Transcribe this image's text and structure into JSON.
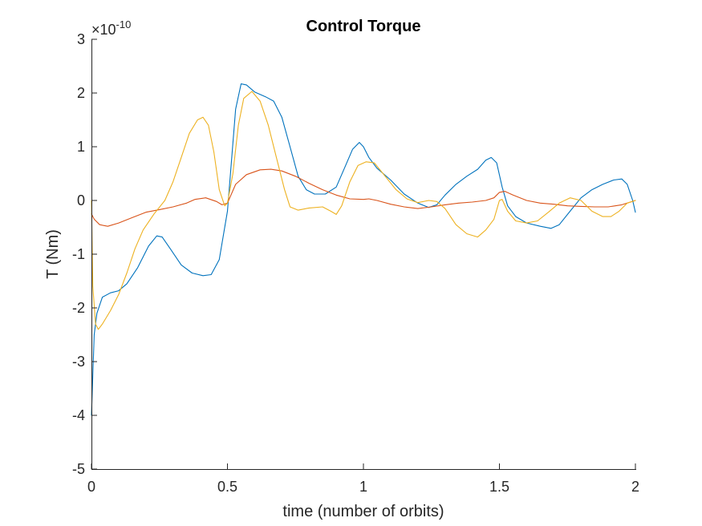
{
  "chart_data": {
    "type": "line",
    "title": "Control Torque",
    "xlabel": "time (number of orbits)",
    "ylabel": "T (Nm)",
    "y_exponent": {
      "base": "10",
      "power": "-10"
    },
    "xlim": [
      0,
      2
    ],
    "ylim": [
      -5,
      3
    ],
    "x_ticks": [
      0,
      0.5,
      1,
      1.5,
      2
    ],
    "x_tick_labels": [
      "0",
      "0.5",
      "1",
      "1.5",
      "2"
    ],
    "y_ticks": [
      -5,
      -4,
      -3,
      -2,
      -1,
      0,
      1,
      2,
      3
    ],
    "y_tick_labels": [
      "-5",
      "-4",
      "-3",
      "-2",
      "-1",
      "0",
      "1",
      "2",
      "3"
    ],
    "grid": false,
    "box": false,
    "series": [
      {
        "color": "#0072BD",
        "points": [
          [
            0,
            -4
          ],
          [
            0.01,
            -2.5
          ],
          [
            0.02,
            -2.1
          ],
          [
            0.04,
            -1.8
          ],
          [
            0.07,
            -1.72
          ],
          [
            0.1,
            -1.68
          ],
          [
            0.13,
            -1.55
          ],
          [
            0.17,
            -1.25
          ],
          [
            0.21,
            -0.85
          ],
          [
            0.24,
            -0.66
          ],
          [
            0.26,
            -0.68
          ],
          [
            0.29,
            -0.9
          ],
          [
            0.33,
            -1.2
          ],
          [
            0.37,
            -1.35
          ],
          [
            0.41,
            -1.4
          ],
          [
            0.44,
            -1.38
          ],
          [
            0.47,
            -1.1
          ],
          [
            0.5,
            -0.2
          ],
          [
            0.53,
            1.7
          ],
          [
            0.55,
            2.17
          ],
          [
            0.57,
            2.15
          ],
          [
            0.6,
            2.02
          ],
          [
            0.64,
            1.93
          ],
          [
            0.67,
            1.85
          ],
          [
            0.7,
            1.55
          ],
          [
            0.73,
            1.0
          ],
          [
            0.76,
            0.45
          ],
          [
            0.79,
            0.2
          ],
          [
            0.82,
            0.12
          ],
          [
            0.86,
            0.12
          ],
          [
            0.9,
            0.25
          ],
          [
            0.93,
            0.6
          ],
          [
            0.96,
            0.95
          ],
          [
            0.985,
            1.08
          ],
          [
            1.0,
            1.0
          ],
          [
            1.02,
            0.8
          ],
          [
            1.05,
            0.6
          ],
          [
            1.1,
            0.38
          ],
          [
            1.15,
            0.12
          ],
          [
            1.2,
            -0.05
          ],
          [
            1.24,
            -0.13
          ],
          [
            1.27,
            -0.08
          ],
          [
            1.3,
            0.1
          ],
          [
            1.34,
            0.3
          ],
          [
            1.38,
            0.45
          ],
          [
            1.42,
            0.58
          ],
          [
            1.45,
            0.75
          ],
          [
            1.47,
            0.8
          ],
          [
            1.49,
            0.7
          ],
          [
            1.51,
            0.25
          ],
          [
            1.53,
            -0.1
          ],
          [
            1.56,
            -0.3
          ],
          [
            1.6,
            -0.42
          ],
          [
            1.65,
            -0.48
          ],
          [
            1.69,
            -0.52
          ],
          [
            1.72,
            -0.45
          ],
          [
            1.76,
            -0.2
          ],
          [
            1.8,
            0.05
          ],
          [
            1.84,
            0.2
          ],
          [
            1.88,
            0.3
          ],
          [
            1.92,
            0.38
          ],
          [
            1.95,
            0.4
          ],
          [
            1.97,
            0.3
          ],
          [
            1.99,
            0.0
          ],
          [
            2.0,
            -0.22
          ]
        ]
      },
      {
        "color": "#D95319",
        "points": [
          [
            0,
            -0.25
          ],
          [
            0.01,
            -0.35
          ],
          [
            0.03,
            -0.45
          ],
          [
            0.06,
            -0.48
          ],
          [
            0.1,
            -0.42
          ],
          [
            0.15,
            -0.32
          ],
          [
            0.2,
            -0.22
          ],
          [
            0.25,
            -0.17
          ],
          [
            0.3,
            -0.12
          ],
          [
            0.35,
            -0.05
          ],
          [
            0.38,
            0.02
          ],
          [
            0.42,
            0.05
          ],
          [
            0.46,
            -0.02
          ],
          [
            0.48,
            -0.08
          ],
          [
            0.5,
            -0.05
          ],
          [
            0.53,
            0.3
          ],
          [
            0.57,
            0.48
          ],
          [
            0.62,
            0.57
          ],
          [
            0.66,
            0.58
          ],
          [
            0.7,
            0.55
          ],
          [
            0.75,
            0.45
          ],
          [
            0.8,
            0.32
          ],
          [
            0.85,
            0.2
          ],
          [
            0.9,
            0.1
          ],
          [
            0.95,
            0.03
          ],
          [
            1.0,
            0.02
          ],
          [
            1.02,
            0.03
          ],
          [
            1.05,
            0.0
          ],
          [
            1.1,
            -0.07
          ],
          [
            1.15,
            -0.12
          ],
          [
            1.2,
            -0.15
          ],
          [
            1.25,
            -0.12
          ],
          [
            1.3,
            -0.08
          ],
          [
            1.35,
            -0.05
          ],
          [
            1.4,
            -0.03
          ],
          [
            1.45,
            0.0
          ],
          [
            1.48,
            0.05
          ],
          [
            1.5,
            0.15
          ],
          [
            1.52,
            0.17
          ],
          [
            1.55,
            0.1
          ],
          [
            1.6,
            0.0
          ],
          [
            1.65,
            -0.05
          ],
          [
            1.7,
            -0.07
          ],
          [
            1.75,
            -0.1
          ],
          [
            1.8,
            -0.11
          ],
          [
            1.85,
            -0.12
          ],
          [
            1.9,
            -0.12
          ],
          [
            1.95,
            -0.08
          ],
          [
            2.0,
            0.0
          ]
        ]
      },
      {
        "color": "#EDB120",
        "points": [
          [
            0,
            0
          ],
          [
            0.005,
            -1.6
          ],
          [
            0.015,
            -2.3
          ],
          [
            0.025,
            -2.4
          ],
          [
            0.04,
            -2.3
          ],
          [
            0.07,
            -2.05
          ],
          [
            0.1,
            -1.75
          ],
          [
            0.13,
            -1.35
          ],
          [
            0.16,
            -0.9
          ],
          [
            0.19,
            -0.55
          ],
          [
            0.23,
            -0.25
          ],
          [
            0.27,
            0.0
          ],
          [
            0.3,
            0.35
          ],
          [
            0.33,
            0.8
          ],
          [
            0.36,
            1.25
          ],
          [
            0.39,
            1.5
          ],
          [
            0.41,
            1.55
          ],
          [
            0.43,
            1.4
          ],
          [
            0.45,
            0.9
          ],
          [
            0.47,
            0.2
          ],
          [
            0.49,
            -0.1
          ],
          [
            0.5,
            -0.05
          ],
          [
            0.52,
            0.5
          ],
          [
            0.54,
            1.4
          ],
          [
            0.56,
            1.9
          ],
          [
            0.59,
            2.03
          ],
          [
            0.62,
            1.85
          ],
          [
            0.65,
            1.4
          ],
          [
            0.68,
            0.8
          ],
          [
            0.71,
            0.2
          ],
          [
            0.73,
            -0.12
          ],
          [
            0.76,
            -0.18
          ],
          [
            0.8,
            -0.14
          ],
          [
            0.85,
            -0.12
          ],
          [
            0.88,
            -0.2
          ],
          [
            0.9,
            -0.26
          ],
          [
            0.92,
            -0.1
          ],
          [
            0.95,
            0.35
          ],
          [
            0.98,
            0.65
          ],
          [
            1.01,
            0.72
          ],
          [
            1.04,
            0.7
          ],
          [
            1.08,
            0.45
          ],
          [
            1.12,
            0.2
          ],
          [
            1.16,
            0.03
          ],
          [
            1.2,
            -0.04
          ],
          [
            1.24,
            0.0
          ],
          [
            1.27,
            -0.02
          ],
          [
            1.3,
            -0.15
          ],
          [
            1.34,
            -0.45
          ],
          [
            1.38,
            -0.62
          ],
          [
            1.42,
            -0.68
          ],
          [
            1.45,
            -0.55
          ],
          [
            1.48,
            -0.35
          ],
          [
            1.5,
            0.0
          ],
          [
            1.51,
            0.02
          ],
          [
            1.53,
            -0.2
          ],
          [
            1.56,
            -0.38
          ],
          [
            1.6,
            -0.42
          ],
          [
            1.64,
            -0.38
          ],
          [
            1.68,
            -0.22
          ],
          [
            1.72,
            -0.05
          ],
          [
            1.76,
            0.05
          ],
          [
            1.8,
            0.0
          ],
          [
            1.84,
            -0.2
          ],
          [
            1.88,
            -0.3
          ],
          [
            1.91,
            -0.3
          ],
          [
            1.94,
            -0.2
          ],
          [
            1.97,
            -0.05
          ],
          [
            2.0,
            0.0
          ]
        ]
      }
    ]
  }
}
